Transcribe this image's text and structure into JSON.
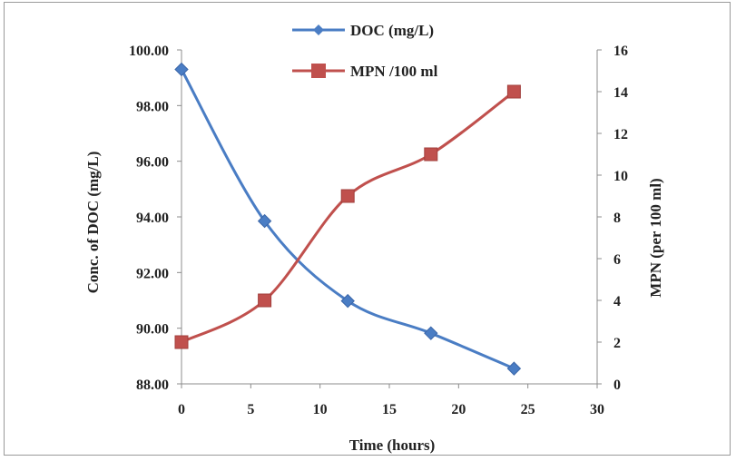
{
  "chart_data": {
    "type": "line",
    "title": "",
    "x": [
      0,
      6,
      12,
      18,
      24
    ],
    "xlabel": "Time (hours)",
    "xlim": [
      0,
      30
    ],
    "xticks": [
      "0",
      "5",
      "10",
      "15",
      "20",
      "25",
      "30"
    ],
    "ylabel": "Conc. of DOC (mg/L)",
    "ylim": [
      88,
      100
    ],
    "yticks": [
      "88.00",
      "90.00",
      "92.00",
      "94.00",
      "96.00",
      "98.00",
      "100.00"
    ],
    "y2label": "MPN (per 100 ml)",
    "y2lim": [
      0,
      16
    ],
    "y2ticks": [
      "0",
      "2",
      "4",
      "6",
      "8",
      "10",
      "12",
      "14",
      "16"
    ],
    "grid": false,
    "legend_position": "top",
    "series": [
      {
        "name": "DOC (mg/L)",
        "axis": "left",
        "color": "#4a7dc4",
        "marker": "diamond",
        "values": [
          99.3,
          93.85,
          90.98,
          89.82,
          88.55
        ]
      },
      {
        "name": "MPN /100 ml",
        "axis": "right",
        "color": "#c0504d",
        "marker": "square",
        "values": [
          2,
          4,
          9,
          11,
          14
        ]
      }
    ]
  }
}
